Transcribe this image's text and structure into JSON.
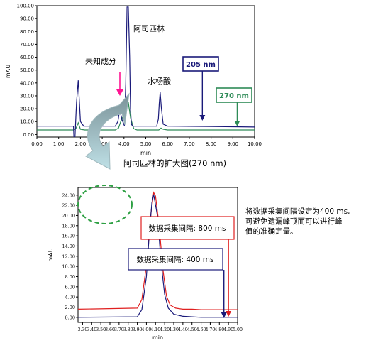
{
  "chart_data": [
    {
      "type": "line",
      "xlabel": "min",
      "ylabel": "mAU",
      "xlim": [
        0,
        10
      ],
      "ylim": [
        -2,
        100
      ],
      "xticks": [
        "0.00",
        "1.00",
        "2.00",
        "3.00",
        "4.00",
        "5.00",
        "6.00",
        "7.00",
        "8.00",
        "9.00",
        "10.00"
      ],
      "yticks": [
        "0.00",
        "10.00",
        "20.00",
        "30.00",
        "40.00",
        "50.00",
        "60.00",
        "70.00",
        "80.00",
        "90.00",
        "100.00"
      ],
      "series": [
        {
          "name": "205 nm",
          "color": "#1a1a7a",
          "x": [
            0,
            1.5,
            1.68,
            1.7,
            1.75,
            1.82,
            1.9,
            2.0,
            2.15,
            3.0,
            3.6,
            3.72,
            3.8,
            3.92,
            4.02,
            4.08,
            4.14,
            4.2,
            4.26,
            4.3,
            4.34,
            4.4,
            4.6,
            5.0,
            5.5,
            5.58,
            5.62,
            5.66,
            5.72,
            5.8,
            6.0,
            7.0,
            8.0,
            9.0,
            10.0
          ],
          "y": [
            6.5,
            6.5,
            6.5,
            -2,
            -2,
            25,
            42,
            10,
            6.5,
            6.5,
            6.5,
            10,
            19,
            11,
            6.8,
            40,
            99,
            99,
            60,
            20,
            8,
            6.5,
            6.5,
            6.5,
            6.5,
            12,
            24,
            33,
            20,
            8,
            6.5,
            6.3,
            6.2,
            6.0,
            5.8
          ]
        },
        {
          "name": "270 nm",
          "color": "#2e8b57",
          "x": [
            0,
            1.5,
            1.7,
            1.8,
            1.9,
            2.0,
            2.2,
            3.0,
            3.6,
            3.75,
            3.85,
            3.95,
            4.05,
            4.2,
            4.3,
            4.45,
            4.6,
            5.0,
            5.6,
            5.7,
            5.8,
            6.0,
            7.0,
            8.0,
            9.0,
            10.0
          ],
          "y": [
            3.5,
            3.5,
            3.5,
            5,
            9,
            4,
            3.5,
            3.5,
            3.5,
            5,
            10,
            14,
            24,
            25,
            13,
            4.5,
            3.5,
            3.5,
            3.5,
            5,
            4,
            3.5,
            3.5,
            3.5,
            3.5,
            3.5
          ]
        }
      ],
      "annotations": [
        {
          "text": "阿司匹林",
          "x": 4.1,
          "y": 99
        },
        {
          "text": "未知成分",
          "x": 3.8,
          "y": 19
        },
        {
          "text": "水杨酸",
          "x": 5.66,
          "y": 33
        }
      ],
      "labels": [
        {
          "text": "205 nm",
          "color": "#1a1a7a",
          "x": 7.6
        },
        {
          "text": "270 nm",
          "color": "#2e8b57",
          "x": 9.2
        }
      ]
    },
    {
      "type": "line",
      "title": "阿司匹林的扩大图(270 nm)",
      "xlabel": "min",
      "ylabel": "mAU",
      "xlim": [
        3.25,
        5.0
      ],
      "ylim": [
        -1,
        25.5
      ],
      "xticks": [
        "3.30",
        "3.40",
        "3.50",
        "3.60",
        "3.70",
        "3.80",
        "3.90",
        "4.00",
        "4.10",
        "4.20",
        "4.30",
        "4.40",
        "4.50",
        "4.60",
        "4.70",
        "4.80",
        "4.90",
        "5.00"
      ],
      "yticks": [
        "0.00",
        "2.00",
        "4.00",
        "6.00",
        "8.00",
        "10.00",
        "12.00",
        "14.00",
        "16.00",
        "18.00",
        "20.00",
        "22.00",
        "24.00"
      ],
      "series": [
        {
          "name": "数据采集间隔: 800 ms",
          "color": "#e02020",
          "x": [
            3.25,
            3.9,
            3.95,
            4.0,
            4.05,
            4.08,
            4.1,
            4.14,
            4.18,
            4.22,
            4.26,
            4.32,
            4.4,
            4.5,
            4.6,
            4.8,
            5.0
          ],
          "y": [
            1.6,
            1.8,
            3.5,
            10.2,
            20.5,
            24.5,
            23.8,
            18,
            9.5,
            4.2,
            2.4,
            1.8,
            1.6,
            1.6,
            1.5,
            1.5,
            1.5
          ]
        },
        {
          "name": "数据采集间隔: 400 ms",
          "color": "#1a1a7a",
          "x": [
            3.25,
            3.9,
            3.95,
            4.0,
            4.03,
            4.06,
            4.08,
            4.12,
            4.16,
            4.2,
            4.24,
            4.3,
            4.4,
            4.5,
            4.6,
            4.8,
            5.0
          ],
          "y": [
            0,
            0.1,
            1.5,
            8,
            16,
            22.5,
            24.1,
            20,
            11,
            4.5,
            1.8,
            0.6,
            0.2,
            0.1,
            0,
            0,
            0
          ]
        }
      ],
      "annotations": [
        {
          "text": "数据采集间隔: 800 ms",
          "color": "#e02020",
          "x": 4.9
        },
        {
          "text": "数据采集间隔: 400 ms",
          "color": "#1a1a7a",
          "x": 4.85
        }
      ]
    }
  ],
  "note": [
    "将数据采集间隔设定为400 ms,",
    "可避免遗漏峰顶而可以进行峰",
    "值的准确定量。"
  ]
}
